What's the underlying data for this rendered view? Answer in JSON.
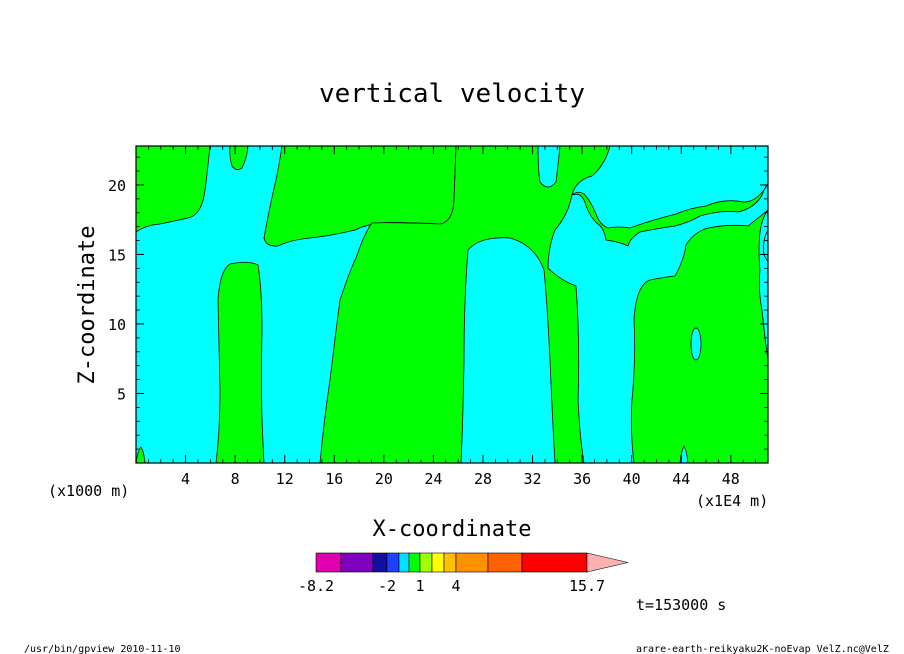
{
  "chart_data": {
    "type": "heatmap",
    "title": "vertical velocity",
    "xlabel": "X-coordinate",
    "ylabel": "Z-coordinate",
    "x_scale_note": "(x1000 m)",
    "x_unit_note": "(x1E4 m)",
    "x_ticks": [
      4,
      8,
      12,
      16,
      20,
      24,
      28,
      32,
      36,
      40,
      44,
      48
    ],
    "y_ticks": [
      5,
      10,
      15,
      20
    ],
    "xlim": [
      0,
      51
    ],
    "ylim": [
      0,
      22.8
    ],
    "colorbar": {
      "tick_labels": [
        "-8.2",
        "-2",
        "1",
        "4",
        "15.7"
      ],
      "tick_values": [
        -8.2,
        -2,
        1,
        4,
        15.7
      ],
      "colors": [
        "#e000b0",
        "#8000c0",
        "#1010a0",
        "#2040ff",
        "#00e0ff",
        "#00ff00",
        "#a0ff00",
        "#ffff00",
        "#ffc000",
        "#ff9000",
        "#ff6000",
        "#ff0000",
        "#ff8080",
        "#ffb0b0"
      ]
    },
    "region_colors": {
      "negative": "#00ffff",
      "positive": "#00ff00"
    },
    "time_label": "t=153000 s"
  },
  "footer": {
    "left": "/usr/bin/gpview   2010-11-10",
    "right": "arare-earth-reikyaku2K-noEvap_VelZ.nc@VelZ"
  }
}
